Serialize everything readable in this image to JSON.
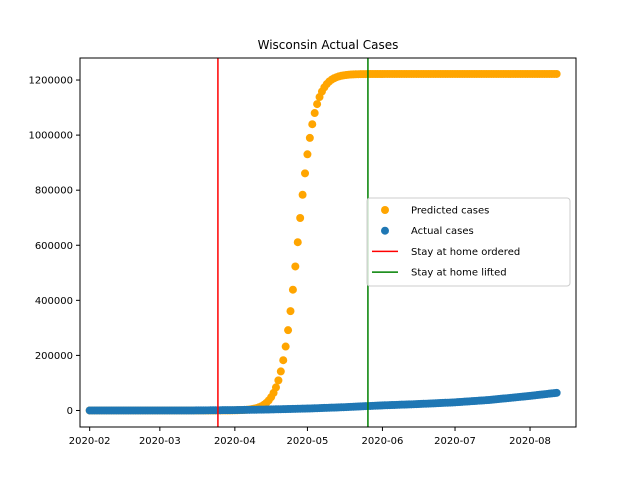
{
  "chart_data": {
    "type": "scatter",
    "title": "Wisconsin Actual Cases",
    "xlabel": "",
    "ylabel": "",
    "x_axis_type": "date",
    "xlim": [
      "2020-01-28",
      "2020-08-20"
    ],
    "ylim": [
      -60000,
      1280000
    ],
    "x_ticks": [
      "2020-02",
      "2020-03",
      "2020-04",
      "2020-05",
      "2020-06",
      "2020-07",
      "2020-08"
    ],
    "y_ticks": [
      0,
      200000,
      400000,
      600000,
      800000,
      1000000,
      1200000
    ],
    "grid": false,
    "legend_position": "center-right",
    "legend": [
      "Predicted cases",
      "Actual cases",
      "Stay at home ordered",
      "Stay at home lifted"
    ],
    "series": [
      {
        "name": "Predicted cases",
        "kind": "logistic-markers",
        "color": "#ffa500",
        "start_date": "2020-02-01",
        "end_date": "2020-08-12",
        "step_days": 1,
        "capacity": 1222000,
        "midpoint_date": "2020-04-27",
        "growth_rate": 0.29
      },
      {
        "name": "Actual cases",
        "kind": "markers",
        "color": "#1f77b4",
        "start_date": "2020-02-01",
        "end_date": "2020-08-12",
        "step_days": 1,
        "points": [
          [
            "2020-02-01",
            0
          ],
          [
            "2020-03-15",
            100
          ],
          [
            "2020-04-01",
            1500
          ],
          [
            "2020-04-15",
            3600
          ],
          [
            "2020-05-01",
            7000
          ],
          [
            "2020-05-15",
            11500
          ],
          [
            "2020-06-01",
            18500
          ],
          [
            "2020-06-15",
            23000
          ],
          [
            "2020-07-01",
            29500
          ],
          [
            "2020-07-15",
            38000
          ],
          [
            "2020-08-01",
            53000
          ],
          [
            "2020-08-12",
            64000
          ]
        ]
      },
      {
        "name": "Stay at home ordered",
        "kind": "vline",
        "color": "#ff0000",
        "x": "2020-03-25"
      },
      {
        "name": "Stay at home lifted",
        "kind": "vline",
        "color": "#008000",
        "x": "2020-05-26"
      }
    ]
  }
}
